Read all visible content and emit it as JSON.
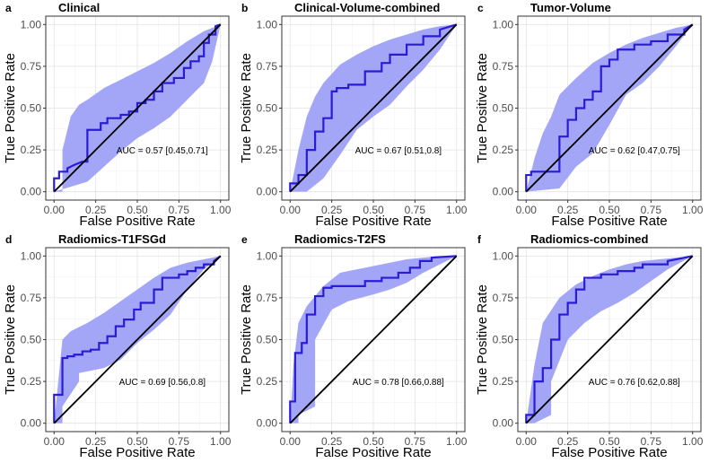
{
  "chart_data": [
    {
      "type": "line",
      "letter": "a",
      "title": "Clinical",
      "xlabel": "False Positive Rate",
      "ylabel": "True Positive Rate",
      "xlim": [
        0,
        1
      ],
      "ylim": [
        0,
        1
      ],
      "x_ticks": [
        "0.00",
        "0.25",
        "0.50",
        "0.75",
        "1.00"
      ],
      "y_ticks": [
        "0.00",
        "0.25",
        "0.50",
        "0.75",
        "1.00"
      ],
      "annotation": "AUC = 0.57 [0.45,0.71]",
      "colors": {
        "roc": "#2b1bd6",
        "ci_band": "#a3a6f7",
        "diagonal": "#000000"
      },
      "series": [
        {
          "name": "ROC",
          "x": [
            0,
            0,
            0.03,
            0.03,
            0.08,
            0.08,
            0.12,
            0.17,
            0.2,
            0.2,
            0.28,
            0.28,
            0.32,
            0.32,
            0.4,
            0.4,
            0.45,
            0.45,
            0.5,
            0.5,
            0.55,
            0.55,
            0.6,
            0.6,
            0.65,
            0.65,
            0.72,
            0.72,
            0.78,
            0.78,
            0.82,
            0.82,
            0.87,
            0.87,
            0.9,
            0.9,
            0.93,
            0.93,
            0.97,
            0.97,
            1
          ],
          "y": [
            0,
            0.08,
            0.08,
            0.12,
            0.12,
            0.14,
            0.16,
            0.18,
            0.18,
            0.37,
            0.37,
            0.41,
            0.41,
            0.44,
            0.44,
            0.46,
            0.46,
            0.48,
            0.48,
            0.53,
            0.53,
            0.55,
            0.55,
            0.6,
            0.6,
            0.65,
            0.65,
            0.68,
            0.68,
            0.74,
            0.74,
            0.78,
            0.78,
            0.81,
            0.81,
            0.89,
            0.89,
            0.94,
            0.94,
            0.99,
            1
          ]
        },
        {
          "name": "CI upper",
          "x": [
            0,
            0.05,
            0.05,
            0.1,
            0.15,
            0.2,
            0.3,
            0.4,
            0.5,
            0.6,
            0.7,
            0.8,
            0.9,
            1
          ],
          "y": [
            0,
            0,
            0.25,
            0.45,
            0.52,
            0.55,
            0.62,
            0.67,
            0.72,
            0.77,
            0.83,
            0.9,
            0.96,
            1
          ]
        },
        {
          "name": "CI lower",
          "x": [
            0,
            0.1,
            0.2,
            0.3,
            0.4,
            0.5,
            0.6,
            0.7,
            0.8,
            0.9,
            0.95,
            1
          ],
          "y": [
            0,
            0.03,
            0.06,
            0.15,
            0.24,
            0.32,
            0.38,
            0.45,
            0.55,
            0.65,
            0.78,
            1
          ]
        }
      ]
    },
    {
      "type": "line",
      "letter": "b",
      "title": "Clinical-Volume-combined",
      "xlabel": "False Positive Rate",
      "ylabel": "True Positive Rate",
      "xlim": [
        0,
        1
      ],
      "ylim": [
        0,
        1
      ],
      "x_ticks": [
        "0.00",
        "0.25",
        "0.50",
        "0.75",
        "1.00"
      ],
      "y_ticks": [
        "0.00",
        "0.25",
        "0.50",
        "0.75",
        "1.00"
      ],
      "annotation": "AUC = 0.67 [0.51,0.8]",
      "colors": {
        "roc": "#2b1bd6",
        "ci_band": "#a3a6f7",
        "diagonal": "#000000"
      },
      "series": [
        {
          "name": "ROC",
          "x": [
            0,
            0,
            0.05,
            0.05,
            0.1,
            0.1,
            0.15,
            0.15,
            0.2,
            0.2,
            0.25,
            0.25,
            0.28,
            0.28,
            0.35,
            0.35,
            0.45,
            0.45,
            0.55,
            0.55,
            0.6,
            0.6,
            0.7,
            0.7,
            0.8,
            0.8,
            0.9,
            0.9,
            1
          ],
          "y": [
            0,
            0.05,
            0.05,
            0.1,
            0.1,
            0.25,
            0.25,
            0.36,
            0.36,
            0.44,
            0.44,
            0.6,
            0.6,
            0.62,
            0.62,
            0.64,
            0.64,
            0.72,
            0.72,
            0.77,
            0.77,
            0.82,
            0.82,
            0.88,
            0.88,
            0.93,
            0.93,
            0.97,
            1
          ]
        },
        {
          "name": "CI upper",
          "x": [
            0,
            0.05,
            0.1,
            0.15,
            0.2,
            0.3,
            0.4,
            0.5,
            0.6,
            0.7,
            0.8,
            0.9,
            1
          ],
          "y": [
            0,
            0.25,
            0.45,
            0.57,
            0.65,
            0.76,
            0.82,
            0.87,
            0.91,
            0.94,
            0.97,
            0.99,
            1
          ]
        },
        {
          "name": "CI lower",
          "x": [
            0,
            0.1,
            0.2,
            0.3,
            0.4,
            0.5,
            0.6,
            0.7,
            0.8,
            0.9,
            1
          ],
          "y": [
            0,
            0,
            0.08,
            0.22,
            0.37,
            0.45,
            0.52,
            0.63,
            0.73,
            0.85,
            1
          ]
        }
      ]
    },
    {
      "type": "line",
      "letter": "c",
      "title": "Tumor-Volume",
      "xlabel": "False Positive Rate",
      "ylabel": "True Positive Rate",
      "xlim": [
        0,
        1
      ],
      "ylim": [
        0,
        1
      ],
      "x_ticks": [
        "0.00",
        "0.25",
        "0.50",
        "0.75",
        "1.00"
      ],
      "y_ticks": [
        "0.00",
        "0.25",
        "0.50",
        "0.75",
        "1.00"
      ],
      "annotation": "AUC = 0.62 [0.47,0.75]",
      "colors": {
        "roc": "#2b1bd6",
        "ci_band": "#a3a6f7",
        "diagonal": "#000000"
      },
      "series": [
        {
          "name": "ROC",
          "x": [
            0,
            0,
            0.03,
            0.03,
            0.2,
            0.2,
            0.25,
            0.25,
            0.3,
            0.3,
            0.35,
            0.35,
            0.4,
            0.4,
            0.45,
            0.45,
            0.5,
            0.5,
            0.55,
            0.55,
            0.65,
            0.65,
            0.75,
            0.75,
            0.85,
            0.85,
            0.95,
            0.95,
            1
          ],
          "y": [
            0,
            0.1,
            0.1,
            0.12,
            0.12,
            0.33,
            0.33,
            0.43,
            0.43,
            0.5,
            0.5,
            0.55,
            0.55,
            0.6,
            0.6,
            0.75,
            0.75,
            0.79,
            0.79,
            0.85,
            0.85,
            0.88,
            0.88,
            0.9,
            0.9,
            0.94,
            0.94,
            0.97,
            1
          ]
        },
        {
          "name": "CI upper",
          "x": [
            0,
            0.05,
            0.1,
            0.15,
            0.2,
            0.3,
            0.4,
            0.5,
            0.6,
            0.7,
            0.8,
            0.9,
            1
          ],
          "y": [
            0,
            0.2,
            0.35,
            0.45,
            0.58,
            0.68,
            0.77,
            0.83,
            0.88,
            0.92,
            0.95,
            0.98,
            1
          ]
        },
        {
          "name": "CI lower",
          "x": [
            0,
            0.2,
            0.3,
            0.4,
            0.5,
            0.6,
            0.7,
            0.8,
            0.9,
            1
          ],
          "y": [
            0,
            0.02,
            0.15,
            0.23,
            0.4,
            0.58,
            0.65,
            0.75,
            0.87,
            1
          ]
        }
      ]
    },
    {
      "type": "line",
      "letter": "d",
      "title": "Radiomics-T1FSGd",
      "xlabel": "False Positive Rate",
      "ylabel": "True Positive Rate",
      "xlim": [
        0,
        1
      ],
      "ylim": [
        0,
        1
      ],
      "x_ticks": [
        "0.00",
        "0.25",
        "0.50",
        "0.75",
        "1.00"
      ],
      "y_ticks": [
        "0.00",
        "0.25",
        "0.50",
        "0.75",
        "1.00"
      ],
      "annotation": "AUC = 0.69 [0.56,0.8]",
      "colors": {
        "roc": "#2b1bd6",
        "ci_band": "#a3a6f7",
        "diagonal": "#000000"
      },
      "series": [
        {
          "name": "ROC",
          "x": [
            0,
            0,
            0.05,
            0.05,
            0.08,
            0.08,
            0.12,
            0.12,
            0.17,
            0.17,
            0.22,
            0.22,
            0.27,
            0.27,
            0.32,
            0.32,
            0.37,
            0.37,
            0.42,
            0.42,
            0.48,
            0.48,
            0.52,
            0.52,
            0.6,
            0.6,
            0.65,
            0.65,
            0.75,
            0.75,
            0.8,
            0.8,
            0.85,
            0.85,
            0.9,
            0.9,
            0.96,
            0.96,
            1
          ],
          "y": [
            0,
            0.17,
            0.17,
            0.39,
            0.39,
            0.4,
            0.4,
            0.41,
            0.41,
            0.43,
            0.43,
            0.44,
            0.44,
            0.48,
            0.48,
            0.52,
            0.52,
            0.58,
            0.58,
            0.62,
            0.62,
            0.68,
            0.68,
            0.72,
            0.72,
            0.8,
            0.8,
            0.87,
            0.87,
            0.89,
            0.89,
            0.91,
            0.91,
            0.93,
            0.93,
            0.95,
            0.95,
            0.97,
            1
          ]
        },
        {
          "name": "CI upper",
          "x": [
            0,
            0.03,
            0.05,
            0.1,
            0.2,
            0.3,
            0.4,
            0.5,
            0.6,
            0.7,
            0.8,
            0.9,
            1
          ],
          "y": [
            0,
            0.3,
            0.5,
            0.55,
            0.6,
            0.66,
            0.73,
            0.8,
            0.87,
            0.93,
            0.96,
            0.98,
            1
          ]
        },
        {
          "name": "CI lower",
          "x": [
            0,
            0.05,
            0.05,
            0.15,
            0.15,
            0.3,
            0.4,
            0.5,
            0.6,
            0.7,
            0.8,
            0.9,
            1
          ],
          "y": [
            0,
            0,
            0.1,
            0.25,
            0.3,
            0.33,
            0.38,
            0.48,
            0.56,
            0.65,
            0.8,
            0.92,
            1
          ]
        }
      ]
    },
    {
      "type": "line",
      "letter": "e",
      "title": "Radiomics-T2FS",
      "xlabel": "False Positive Rate",
      "ylabel": "True Positive Rate",
      "xlim": [
        0,
        1
      ],
      "ylim": [
        0,
        1
      ],
      "x_ticks": [
        "0.00",
        "0.25",
        "0.50",
        "0.75",
        "1.00"
      ],
      "y_ticks": [
        "0.00",
        "0.25",
        "0.50",
        "0.75",
        "1.00"
      ],
      "annotation": "AUC = 0.78 [0.66,0.88]",
      "colors": {
        "roc": "#2b1bd6",
        "ci_band": "#a3a6f7",
        "diagonal": "#000000"
      },
      "series": [
        {
          "name": "ROC",
          "x": [
            0,
            0,
            0.03,
            0.03,
            0.07,
            0.07,
            0.1,
            0.1,
            0.15,
            0.15,
            0.2,
            0.2,
            0.25,
            0.25,
            0.45,
            0.45,
            0.55,
            0.55,
            0.65,
            0.65,
            0.72,
            0.72,
            0.78,
            0.78,
            0.85,
            0.85,
            1
          ],
          "y": [
            0,
            0.13,
            0.13,
            0.42,
            0.42,
            0.48,
            0.48,
            0.65,
            0.65,
            0.76,
            0.76,
            0.81,
            0.81,
            0.82,
            0.82,
            0.85,
            0.85,
            0.87,
            0.87,
            0.9,
            0.9,
            0.93,
            0.93,
            0.97,
            0.97,
            0.99,
            1
          ]
        },
        {
          "name": "CI upper",
          "x": [
            0,
            0.02,
            0.05,
            0.1,
            0.2,
            0.3,
            0.4,
            0.5,
            0.6,
            0.7,
            0.8,
            0.9,
            1
          ],
          "y": [
            0,
            0.35,
            0.6,
            0.7,
            0.82,
            0.9,
            0.92,
            0.94,
            0.96,
            0.98,
            0.99,
            1,
            1
          ]
        },
        {
          "name": "CI lower",
          "x": [
            0,
            0.05,
            0.05,
            0.15,
            0.15,
            0.25,
            0.35,
            0.5,
            0.6,
            0.7,
            0.8,
            0.9,
            1
          ],
          "y": [
            0,
            0,
            0.05,
            0.1,
            0.5,
            0.68,
            0.73,
            0.77,
            0.8,
            0.84,
            0.9,
            0.95,
            1
          ]
        }
      ]
    },
    {
      "type": "line",
      "letter": "f",
      "title": "Radiomics-combined",
      "xlabel": "False Positive Rate",
      "ylabel": "True Positive Rate",
      "xlim": [
        0,
        1
      ],
      "ylim": [
        0,
        1
      ],
      "x_ticks": [
        "0.00",
        "0.25",
        "0.50",
        "0.75",
        "1.00"
      ],
      "y_ticks": [
        "0.00",
        "0.25",
        "0.50",
        "0.75",
        "1.00"
      ],
      "annotation": "AUC = 0.76 [0.62,0.88]",
      "colors": {
        "roc": "#2b1bd6",
        "ci_band": "#a3a6f7",
        "diagonal": "#000000"
      },
      "series": [
        {
          "name": "ROC",
          "x": [
            0,
            0,
            0.05,
            0.05,
            0.1,
            0.1,
            0.15,
            0.15,
            0.2,
            0.2,
            0.25,
            0.25,
            0.3,
            0.3,
            0.35,
            0.35,
            0.45,
            0.45,
            0.55,
            0.55,
            0.65,
            0.65,
            0.7,
            0.7,
            0.85,
            0.85,
            1
          ],
          "y": [
            0,
            0.05,
            0.05,
            0.25,
            0.25,
            0.33,
            0.33,
            0.5,
            0.5,
            0.65,
            0.65,
            0.72,
            0.72,
            0.8,
            0.8,
            0.87,
            0.87,
            0.89,
            0.89,
            0.91,
            0.91,
            0.93,
            0.93,
            0.95,
            0.95,
            0.97,
            1
          ]
        },
        {
          "name": "CI upper",
          "x": [
            0,
            0.05,
            0.1,
            0.2,
            0.3,
            0.4,
            0.5,
            0.6,
            0.7,
            0.8,
            0.9,
            1
          ],
          "y": [
            0,
            0.35,
            0.6,
            0.75,
            0.83,
            0.88,
            0.92,
            0.95,
            0.97,
            0.98,
            0.99,
            1
          ]
        },
        {
          "name": "CI lower",
          "x": [
            0,
            0.05,
            0.15,
            0.15,
            0.25,
            0.35,
            0.45,
            0.55,
            0.65,
            0.75,
            0.85,
            1
          ],
          "y": [
            0,
            0,
            0.05,
            0.25,
            0.5,
            0.6,
            0.67,
            0.72,
            0.78,
            0.85,
            0.92,
            1
          ]
        }
      ]
    }
  ]
}
